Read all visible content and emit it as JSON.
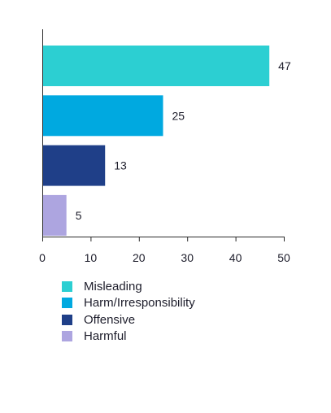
{
  "chart_data": {
    "type": "bar",
    "orientation": "horizontal",
    "categories": [
      "Misleading",
      "Harm/Irresponsibility",
      "Offensive",
      "Harmful"
    ],
    "values": [
      47,
      25,
      13,
      5
    ],
    "colors": [
      "#2ccfd2",
      "#00a9e0",
      "#1f3f88",
      "#ada5e0"
    ],
    "xlim": [
      0,
      50
    ],
    "xticks": [
      0,
      10,
      20,
      30,
      40,
      50
    ],
    "title": "",
    "xlabel": "",
    "ylabel": "",
    "grid": false,
    "legend_position": "bottom",
    "data_labels": true
  },
  "legend": {
    "items": [
      {
        "label": "Misleading",
        "color": "#2ccfd2"
      },
      {
        "label": "Harm/Irresponsibility",
        "color": "#00a9e0"
      },
      {
        "label": "Offensive",
        "color": "#1f3f88"
      },
      {
        "label": "Harmful",
        "color": "#ada5e0"
      }
    ]
  }
}
